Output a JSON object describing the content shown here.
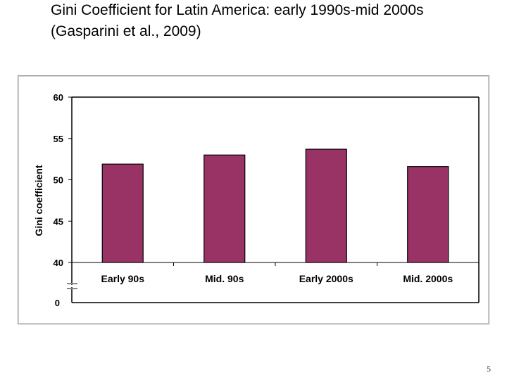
{
  "slide": {
    "title_line1": "Gini Coefficient for Latin America: early 1990s-mid 2000s",
    "title_line2": "(Gasparini et al., 2009)",
    "page_number": "5"
  },
  "colors": {
    "bar": "#993366",
    "axis": "#000000"
  },
  "chart_data": {
    "type": "bar",
    "title": "",
    "xlabel": "",
    "ylabel": "Gini coefficient",
    "categories": [
      "Early 90s",
      "Mid. 90s",
      "Early 2000s",
      "Mid. 2000s"
    ],
    "values": [
      51.9,
      53.0,
      53.7,
      51.6
    ],
    "ylim": [
      40,
      60
    ],
    "yticks": [
      40,
      45,
      50,
      55,
      60
    ],
    "axis_break": true,
    "axis_break_baseline": 0,
    "legend": "none",
    "grid": false
  }
}
